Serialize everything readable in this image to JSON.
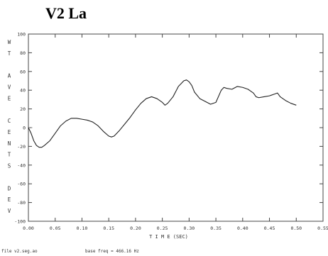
{
  "chart_data": {
    "type": "line",
    "title": "V2 La",
    "ylabel": "WT AVE CENTS DEV",
    "xlabel": "T I M E (SEC)",
    "xlim": [
      0,
      0.55
    ],
    "ylim": [
      -100,
      100
    ],
    "x_ticks": [
      "0.00",
      "0.05",
      "0.10",
      "0.15",
      "0.20",
      "0.25",
      "0.30",
      "0.35",
      "0.40",
      "0.45",
      "0.50",
      "0.55"
    ],
    "y_ticks": [
      "100",
      "80",
      "60",
      "40",
      "20",
      "0",
      "-20",
      "-40",
      "-60",
      "-80",
      "-100"
    ],
    "grid": false,
    "series": [
      {
        "color": "#222222",
        "points": [
          [
            0.0,
            0
          ],
          [
            0.005,
            -6
          ],
          [
            0.01,
            -14
          ],
          [
            0.015,
            -19
          ],
          [
            0.02,
            -21
          ],
          [
            0.025,
            -21
          ],
          [
            0.03,
            -19
          ],
          [
            0.04,
            -14
          ],
          [
            0.05,
            -6
          ],
          [
            0.06,
            2
          ],
          [
            0.07,
            7
          ],
          [
            0.08,
            10
          ],
          [
            0.09,
            10
          ],
          [
            0.1,
            9
          ],
          [
            0.11,
            8
          ],
          [
            0.12,
            6
          ],
          [
            0.13,
            2
          ],
          [
            0.14,
            -4
          ],
          [
            0.15,
            -9
          ],
          [
            0.155,
            -10
          ],
          [
            0.16,
            -9
          ],
          [
            0.17,
            -3
          ],
          [
            0.18,
            4
          ],
          [
            0.19,
            11
          ],
          [
            0.2,
            19
          ],
          [
            0.21,
            26
          ],
          [
            0.22,
            31
          ],
          [
            0.23,
            33
          ],
          [
            0.24,
            31
          ],
          [
            0.25,
            27
          ],
          [
            0.255,
            24
          ],
          [
            0.26,
            26
          ],
          [
            0.27,
            33
          ],
          [
            0.28,
            44
          ],
          [
            0.29,
            50
          ],
          [
            0.295,
            51
          ],
          [
            0.3,
            49
          ],
          [
            0.305,
            45
          ],
          [
            0.31,
            38
          ],
          [
            0.32,
            31
          ],
          [
            0.33,
            28
          ],
          [
            0.34,
            25
          ],
          [
            0.35,
            27
          ],
          [
            0.36,
            40
          ],
          [
            0.365,
            43
          ],
          [
            0.37,
            42
          ],
          [
            0.38,
            41
          ],
          [
            0.39,
            44
          ],
          [
            0.4,
            43
          ],
          [
            0.41,
            41
          ],
          [
            0.42,
            37
          ],
          [
            0.425,
            33
          ],
          [
            0.43,
            32
          ],
          [
            0.44,
            33
          ],
          [
            0.45,
            34
          ],
          [
            0.46,
            36
          ],
          [
            0.465,
            37
          ],
          [
            0.47,
            33
          ],
          [
            0.48,
            29
          ],
          [
            0.49,
            26
          ],
          [
            0.5,
            24
          ]
        ]
      }
    ]
  },
  "footer": {
    "file": "file v2.seg.ao",
    "base_freq": "base freq = 466.16 Hz"
  }
}
